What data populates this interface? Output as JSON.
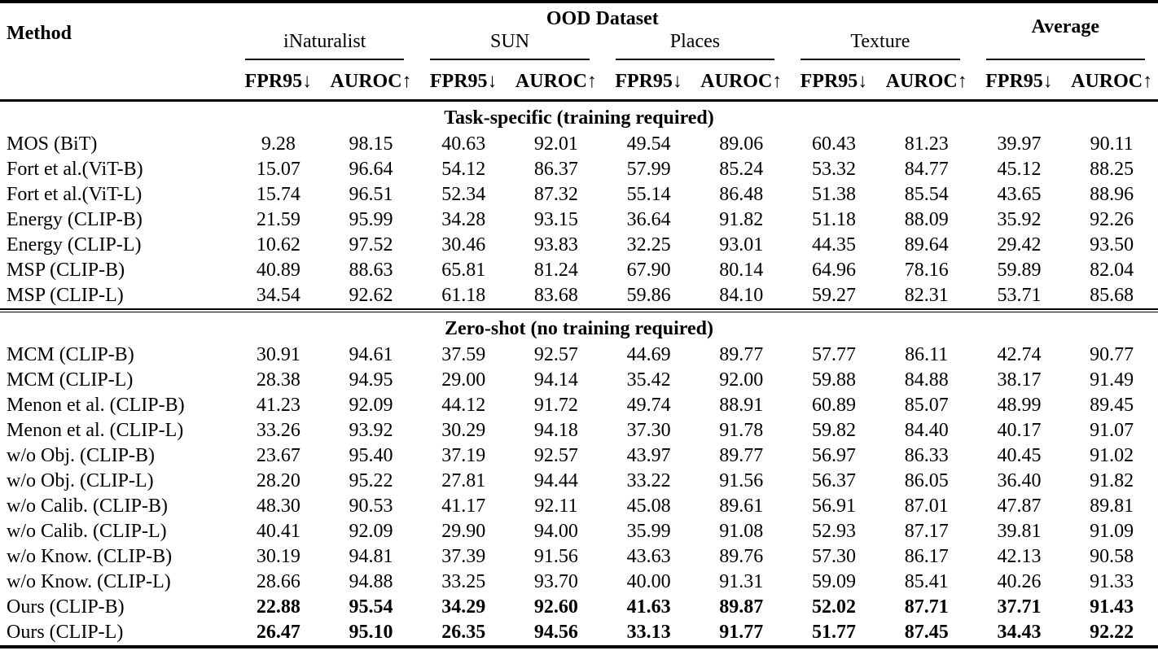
{
  "colors": {
    "text": "#000000",
    "background": "#ffffff",
    "rule": "#000000"
  },
  "table": {
    "header": {
      "method_label": "Method",
      "group_label": "OOD Dataset",
      "average_label": "Average",
      "datasets": [
        "iNaturalist",
        "SUN",
        "Places",
        "Texture"
      ],
      "metric_labels": [
        "FPR95↓",
        "AUROC↑"
      ]
    },
    "sections": [
      {
        "title": "Task-specific (training required)",
        "rows": [
          {
            "method": "MOS (BiT)",
            "bold_values": false,
            "values": [
              "9.28",
              "98.15",
              "40.63",
              "92.01",
              "49.54",
              "89.06",
              "60.43",
              "81.23",
              "39.97",
              "90.11"
            ]
          },
          {
            "method": "Fort et al.(ViT-B)",
            "bold_values": false,
            "values": [
              "15.07",
              "96.64",
              "54.12",
              "86.37",
              "57.99",
              "85.24",
              "53.32",
              "84.77",
              "45.12",
              "88.25"
            ]
          },
          {
            "method": "Fort et al.(ViT-L)",
            "bold_values": false,
            "values": [
              "15.74",
              "96.51",
              "52.34",
              "87.32",
              "55.14",
              "86.48",
              "51.38",
              "85.54",
              "43.65",
              "88.96"
            ]
          },
          {
            "method": "Energy (CLIP-B)",
            "bold_values": false,
            "values": [
              "21.59",
              "95.99",
              "34.28",
              "93.15",
              "36.64",
              "91.82",
              "51.18",
              "88.09",
              "35.92",
              "92.26"
            ]
          },
          {
            "method": "Energy (CLIP-L)",
            "bold_values": false,
            "values": [
              "10.62",
              "97.52",
              "30.46",
              "93.83",
              "32.25",
              "93.01",
              "44.35",
              "89.64",
              "29.42",
              "93.50"
            ]
          },
          {
            "method": "MSP (CLIP-B)",
            "bold_values": false,
            "values": [
              "40.89",
              "88.63",
              "65.81",
              "81.24",
              "67.90",
              "80.14",
              "64.96",
              "78.16",
              "59.89",
              "82.04"
            ]
          },
          {
            "method": "MSP (CLIP-L)",
            "bold_values": false,
            "values": [
              "34.54",
              "92.62",
              "61.18",
              "83.68",
              "59.86",
              "84.10",
              "59.27",
              "82.31",
              "53.71",
              "85.68"
            ]
          }
        ]
      },
      {
        "title": "Zero-shot (no training required)",
        "rows": [
          {
            "method": "MCM (CLIP-B)",
            "bold_values": false,
            "values": [
              "30.91",
              "94.61",
              "37.59",
              "92.57",
              "44.69",
              "89.77",
              "57.77",
              "86.11",
              "42.74",
              "90.77"
            ]
          },
          {
            "method": "MCM (CLIP-L)",
            "bold_values": false,
            "values": [
              "28.38",
              "94.95",
              "29.00",
              "94.14",
              "35.42",
              "92.00",
              "59.88",
              "84.88",
              "38.17",
              "91.49"
            ]
          },
          {
            "method": "Menon et al. (CLIP-B)",
            "bold_values": false,
            "values": [
              "41.23",
              "92.09",
              "44.12",
              "91.72",
              "49.74",
              "88.91",
              "60.89",
              "85.07",
              "48.99",
              "89.45"
            ]
          },
          {
            "method": "Menon et al. (CLIP-L)",
            "bold_values": false,
            "values": [
              "33.26",
              "93.92",
              "30.29",
              "94.18",
              "37.30",
              "91.78",
              "59.82",
              "84.40",
              "40.17",
              "91.07"
            ]
          },
          {
            "method": "w/o Obj. (CLIP-B)",
            "bold_values": false,
            "values": [
              "23.67",
              "95.40",
              "37.19",
              "92.57",
              "43.97",
              "89.77",
              "56.97",
              "86.33",
              "40.45",
              "91.02"
            ]
          },
          {
            "method": "w/o Obj. (CLIP-L)",
            "bold_values": false,
            "values": [
              "28.20",
              "95.22",
              "27.81",
              "94.44",
              "33.22",
              "91.56",
              "56.37",
              "86.05",
              "36.40",
              "91.82"
            ]
          },
          {
            "method": "w/o Calib. (CLIP-B)",
            "bold_values": false,
            "values": [
              "48.30",
              "90.53",
              "41.17",
              "92.11",
              "45.08",
              "89.61",
              "56.91",
              "87.01",
              "47.87",
              "89.81"
            ]
          },
          {
            "method": "w/o Calib. (CLIP-L)",
            "bold_values": false,
            "values": [
              "40.41",
              "92.09",
              "29.90",
              "94.00",
              "35.99",
              "91.08",
              "52.93",
              "87.17",
              "39.81",
              "91.09"
            ]
          },
          {
            "method": "w/o Know. (CLIP-B)",
            "bold_values": false,
            "values": [
              "30.19",
              "94.81",
              "37.39",
              "91.56",
              "43.63",
              "89.76",
              "57.30",
              "86.17",
              "42.13",
              "90.58"
            ]
          },
          {
            "method": "w/o Know. (CLIP-L)",
            "bold_values": false,
            "values": [
              "28.66",
              "94.88",
              "33.25",
              "93.70",
              "40.00",
              "91.31",
              "59.09",
              "85.41",
              "40.26",
              "91.33"
            ]
          },
          {
            "method": "Ours (CLIP-B)",
            "bold_values": true,
            "values": [
              "22.88",
              "95.54",
              "34.29",
              "92.60",
              "41.63",
              "89.87",
              "52.02",
              "87.71",
              "37.71",
              "91.43"
            ]
          },
          {
            "method": "Ours (CLIP-L)",
            "bold_values": true,
            "values": [
              "26.47",
              "95.10",
              "26.35",
              "94.56",
              "33.13",
              "91.77",
              "51.77",
              "87.45",
              "34.43",
              "92.22"
            ]
          }
        ]
      }
    ]
  }
}
